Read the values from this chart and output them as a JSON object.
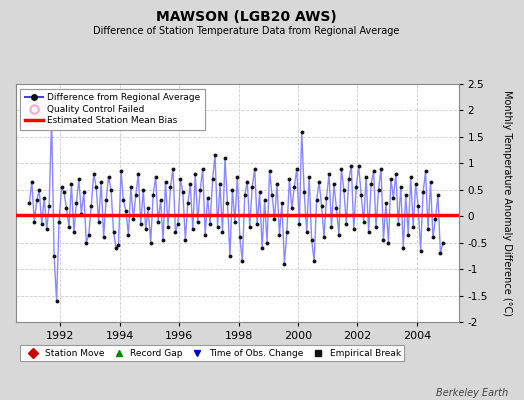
{
  "title": "MAWSON (LGB20 AWS)",
  "subtitle": "Difference of Station Temperature Data from Regional Average",
  "ylabel": "Monthly Temperature Anomaly Difference (°C)",
  "ylim": [
    -2.0,
    2.5
  ],
  "yticks": [
    -2.0,
    -1.5,
    -1.0,
    -0.5,
    0.0,
    0.5,
    1.0,
    1.5,
    2.0,
    2.5
  ],
  "xlim": [
    1990.5,
    2005.4
  ],
  "xticks": [
    1992,
    1994,
    1996,
    1998,
    2000,
    2002,
    2004
  ],
  "bias_value": 0.03,
  "line_color": "#8888ff",
  "marker_color": "#111111",
  "bias_color": "#ff0000",
  "bg_color": "#d8d8d8",
  "plot_bg": "#ffffff",
  "grid_color": "#cccccc",
  "watermark": "Berkeley Earth",
  "time_values": [
    1990.958,
    1991.042,
    1991.125,
    1991.208,
    1991.292,
    1991.375,
    1991.458,
    1991.542,
    1991.625,
    1991.708,
    1991.792,
    1991.875,
    1991.958,
    1992.042,
    1992.125,
    1992.208,
    1992.292,
    1992.375,
    1992.458,
    1992.542,
    1992.625,
    1992.708,
    1992.792,
    1992.875,
    1992.958,
    1993.042,
    1993.125,
    1993.208,
    1993.292,
    1993.375,
    1993.458,
    1993.542,
    1993.625,
    1993.708,
    1993.792,
    1993.875,
    1993.958,
    1994.042,
    1994.125,
    1994.208,
    1994.292,
    1994.375,
    1994.458,
    1994.542,
    1994.625,
    1994.708,
    1994.792,
    1994.875,
    1994.958,
    1995.042,
    1995.125,
    1995.208,
    1995.292,
    1995.375,
    1995.458,
    1995.542,
    1995.625,
    1995.708,
    1995.792,
    1995.875,
    1995.958,
    1996.042,
    1996.125,
    1996.208,
    1996.292,
    1996.375,
    1996.458,
    1996.542,
    1996.625,
    1996.708,
    1996.792,
    1996.875,
    1996.958,
    1997.042,
    1997.125,
    1997.208,
    1997.292,
    1997.375,
    1997.458,
    1997.542,
    1997.625,
    1997.708,
    1997.792,
    1997.875,
    1997.958,
    1998.042,
    1998.125,
    1998.208,
    1998.292,
    1998.375,
    1998.458,
    1998.542,
    1998.625,
    1998.708,
    1998.792,
    1998.875,
    1998.958,
    1999.042,
    1999.125,
    1999.208,
    1999.292,
    1999.375,
    1999.458,
    1999.542,
    1999.625,
    1999.708,
    1999.792,
    1999.875,
    1999.958,
    2000.042,
    2000.125,
    2000.208,
    2000.292,
    2000.375,
    2000.458,
    2000.542,
    2000.625,
    2000.708,
    2000.792,
    2000.875,
    2000.958,
    2001.042,
    2001.125,
    2001.208,
    2001.292,
    2001.375,
    2001.458,
    2001.542,
    2001.625,
    2001.708,
    2001.792,
    2001.875,
    2001.958,
    2002.042,
    2002.125,
    2002.208,
    2002.292,
    2002.375,
    2002.458,
    2002.542,
    2002.625,
    2002.708,
    2002.792,
    2002.875,
    2002.958,
    2003.042,
    2003.125,
    2003.208,
    2003.292,
    2003.375,
    2003.458,
    2003.542,
    2003.625,
    2003.708,
    2003.792,
    2003.875,
    2003.958,
    2004.042,
    2004.125,
    2004.208,
    2004.292,
    2004.375,
    2004.458,
    2004.542,
    2004.625,
    2004.708,
    2004.792,
    2004.875
  ],
  "diff_values": [
    0.25,
    0.65,
    -0.1,
    0.3,
    0.5,
    -0.15,
    0.35,
    -0.25,
    0.2,
    1.85,
    -0.75,
    -1.6,
    -0.1,
    0.55,
    0.45,
    0.15,
    -0.2,
    0.6,
    -0.3,
    0.25,
    0.7,
    0.05,
    0.45,
    -0.5,
    -0.35,
    0.2,
    0.8,
    0.55,
    -0.1,
    0.65,
    -0.4,
    0.3,
    0.75,
    0.5,
    -0.3,
    -0.6,
    -0.55,
    0.85,
    0.3,
    0.1,
    -0.35,
    0.55,
    -0.05,
    0.4,
    0.8,
    -0.15,
    0.5,
    -0.25,
    0.15,
    -0.5,
    0.4,
    0.75,
    -0.1,
    0.3,
    -0.45,
    0.65,
    -0.2,
    0.55,
    0.9,
    -0.3,
    -0.15,
    0.7,
    0.45,
    -0.45,
    0.25,
    0.6,
    -0.25,
    0.8,
    -0.1,
    0.5,
    0.9,
    -0.35,
    0.35,
    -0.15,
    0.7,
    1.15,
    -0.2,
    0.6,
    -0.3,
    1.1,
    0.25,
    -0.75,
    0.5,
    -0.1,
    0.75,
    -0.4,
    -0.85,
    0.4,
    0.65,
    -0.2,
    0.55,
    0.9,
    -0.15,
    0.45,
    -0.6,
    0.3,
    -0.5,
    0.85,
    0.4,
    -0.05,
    0.6,
    -0.35,
    0.25,
    -0.9,
    -0.3,
    0.7,
    0.15,
    0.55,
    0.9,
    -0.15,
    1.6,
    0.45,
    -0.3,
    0.75,
    -0.45,
    -0.85,
    0.3,
    0.65,
    0.2,
    -0.4,
    0.35,
    0.8,
    -0.2,
    0.6,
    0.15,
    -0.35,
    0.9,
    0.5,
    -0.15,
    0.7,
    0.95,
    -0.25,
    0.55,
    0.95,
    0.4,
    -0.1,
    0.75,
    -0.3,
    0.6,
    0.85,
    -0.2,
    0.5,
    0.9,
    -0.45,
    0.25,
    -0.5,
    0.7,
    0.35,
    0.8,
    -0.15,
    0.55,
    -0.6,
    0.4,
    -0.35,
    0.75,
    -0.2,
    0.6,
    0.2,
    -0.65,
    0.45,
    0.85,
    -0.25,
    0.65,
    -0.4,
    -0.05,
    0.4,
    -0.7,
    -0.5
  ]
}
